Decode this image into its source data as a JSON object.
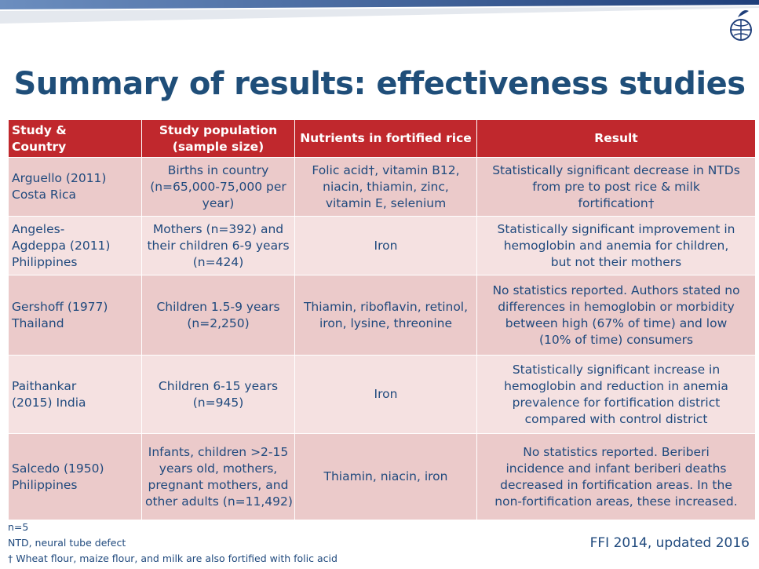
{
  "header": {
    "title": "Summary of results: effectiveness studies"
  },
  "table": {
    "columns": [
      [
        "Study &",
        "Country"
      ],
      [
        "Study population",
        "(sample size)"
      ],
      [
        "Nutrients in fortified rice"
      ],
      [
        "Result"
      ]
    ],
    "rows": [
      [
        [
          "Arguello (2011)",
          "Costa Rica"
        ],
        [
          "Births in country",
          "(n=65,000-75,000 per",
          "year)"
        ],
        [
          "Folic acid†, vitamin B12,",
          "niacin, thiamin, zinc,",
          "vitamin E, selenium"
        ],
        [
          "Statistically significant decrease in NTDs",
          "from pre to post rice & milk",
          "fortification†"
        ]
      ],
      [
        [
          "Angeles-",
          "Agdeppa (2011)",
          "Philippines"
        ],
        [
          "Mothers (n=392) and",
          "their children 6-9 years",
          "(n=424)"
        ],
        [
          "Iron"
        ],
        [
          "Statistically significant improvement in",
          "hemoglobin and anemia for children,",
          "but not their mothers"
        ]
      ],
      [
        [
          "Gershoff (1977)",
          "Thailand"
        ],
        [
          "Children 1.5-9 years",
          "(n=2,250)"
        ],
        [
          "Thiamin, riboflavin, retinol,",
          "iron, lysine, threonine"
        ],
        [
          "No statistics reported. Authors stated no",
          "differences in hemoglobin or morbidity",
          "between high (67% of time) and low",
          "(10% of time) consumers"
        ]
      ],
      [
        [
          "Paithankar",
          "(2015) India"
        ],
        [
          "Children 6-15 years",
          "(n=945)"
        ],
        [
          "Iron"
        ],
        [
          "Statistically significant increase in",
          "hemoglobin and reduction in anemia",
          "prevalence for fortification district",
          "compared with control district"
        ]
      ],
      [
        [
          "Salcedo (1950)",
          "Philippines"
        ],
        [
          "Infants, children >2-15",
          "years old, mothers,",
          "pregnant mothers, and",
          "other adults (n=11,492)"
        ],
        [
          "Thiamin, niacin, iron"
        ],
        [
          "No statistics reported.  Beriberi",
          "incidence and infant beriberi deaths",
          "decreased in fortification areas.  In the",
          "non-fortification areas, these increased."
        ]
      ]
    ]
  },
  "footnotes": [
    "n=5",
    "NTD, neural tube defect",
    "† Wheat flour, maize flour, and milk are also fortified with folic acid"
  ],
  "source": "FFI 2014, updated 2016"
}
